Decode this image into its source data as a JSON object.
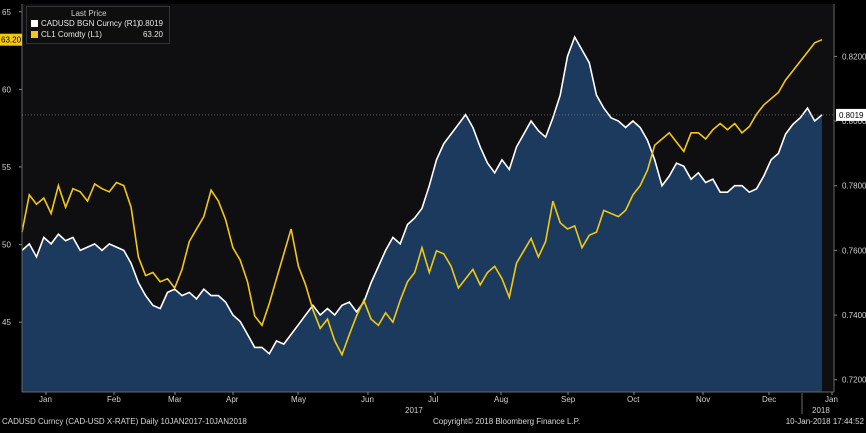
{
  "chart_data": {
    "type": "line",
    "legend": {
      "header": "Last Price",
      "entries": [
        {
          "name": "CADUSD BGN Curncy  (R1)",
          "value": "0.8019",
          "color": "#ffffff"
        },
        {
          "name": "CL1 Comdty  (L1)",
          "value": "63.20",
          "color": "#f2c811"
        }
      ]
    },
    "left_axis": {
      "ticks": [
        "45",
        "50",
        "55",
        "60",
        "65"
      ],
      "ylim": [
        40.5,
        65.5
      ]
    },
    "right_axis": {
      "ticks": [
        "0.7200",
        "0.7400",
        "0.7600",
        "0.7800",
        "0.8000",
        "0.8200"
      ],
      "ylim": [
        0.7162,
        0.8362
      ]
    },
    "x_labels": [
      "Jan",
      "Feb",
      "Mar",
      "Apr",
      "May",
      "Jun",
      "Jul",
      "Aug",
      "Sep",
      "Oct",
      "Nov",
      "Dec",
      "Jan"
    ],
    "year_labels": [
      "2017",
      "2018"
    ],
    "last_value_badges": {
      "left": "63.20",
      "right": "0.8019"
    },
    "series": [
      {
        "name": "CADUSD BGN Curncy  (R1)",
        "axis": "right",
        "color": "#ffffff",
        "fill": "#1c3a5e",
        "values": [
          0.76,
          0.762,
          0.758,
          0.764,
          0.762,
          0.765,
          0.763,
          0.764,
          0.76,
          0.761,
          0.762,
          0.76,
          0.762,
          0.761,
          0.76,
          0.756,
          0.75,
          0.746,
          0.743,
          0.742,
          0.747,
          0.748,
          0.746,
          0.747,
          0.745,
          0.748,
          0.746,
          0.746,
          0.744,
          0.74,
          0.738,
          0.734,
          0.73,
          0.73,
          0.728,
          0.732,
          0.731,
          0.734,
          0.737,
          0.74,
          0.743,
          0.74,
          0.742,
          0.74,
          0.743,
          0.744,
          0.741,
          0.744,
          0.75,
          0.755,
          0.76,
          0.764,
          0.762,
          0.768,
          0.77,
          0.773,
          0.78,
          0.788,
          0.793,
          0.796,
          0.799,
          0.802,
          0.798,
          0.792,
          0.787,
          0.784,
          0.788,
          0.785,
          0.792,
          0.796,
          0.8,
          0.797,
          0.795,
          0.801,
          0.808,
          0.82,
          0.826,
          0.822,
          0.818,
          0.808,
          0.804,
          0.801,
          0.8,
          0.798,
          0.8,
          0.798,
          0.794,
          0.788,
          0.78,
          0.783,
          0.787,
          0.786,
          0.782,
          0.784,
          0.781,
          0.782,
          0.778,
          0.778,
          0.78,
          0.78,
          0.778,
          0.779,
          0.783,
          0.788,
          0.79,
          0.796,
          0.799,
          0.801,
          0.804,
          0.8,
          0.8019
        ]
      },
      {
        "name": "CL1 Comdty  (L1)",
        "axis": "left",
        "color": "#f2c811",
        "values": [
          50.8,
          53.2,
          52.6,
          53.0,
          52.0,
          53.8,
          52.4,
          53.6,
          53.4,
          52.8,
          53.9,
          53.6,
          53.4,
          54.0,
          53.8,
          52.4,
          49.2,
          48.0,
          48.2,
          47.6,
          47.8,
          47.2,
          48.4,
          50.2,
          51.0,
          51.8,
          53.5,
          52.8,
          51.6,
          49.8,
          49.0,
          47.6,
          45.4,
          44.8,
          46.2,
          47.8,
          49.4,
          51.0,
          48.6,
          47.4,
          45.8,
          44.6,
          45.2,
          43.8,
          42.9,
          44.2,
          45.4,
          46.4,
          45.2,
          44.8,
          45.6,
          45.0,
          46.4,
          47.6,
          48.2,
          49.8,
          48.2,
          49.6,
          49.4,
          48.6,
          47.2,
          47.8,
          48.4,
          47.4,
          48.2,
          48.6,
          47.8,
          46.6,
          48.8,
          49.6,
          50.4,
          49.2,
          50.2,
          52.8,
          51.4,
          51.0,
          51.2,
          49.8,
          50.6,
          50.8,
          52.2,
          52.0,
          51.8,
          52.2,
          53.2,
          53.8,
          54.8,
          56.4,
          56.8,
          57.2,
          56.6,
          56.0,
          57.2,
          57.2,
          56.8,
          57.4,
          57.8,
          57.4,
          57.8,
          57.2,
          57.6,
          58.4,
          59.0,
          59.4,
          59.8,
          60.6,
          61.2,
          61.8,
          62.4,
          63.0,
          63.2
        ]
      }
    ],
    "grid": false
  },
  "footer": {
    "left": "CADUSD Curncy (CAD-USD X-RATE)  Daily 10JAN2017-10JAN2018",
    "center": "Copyright© 2018 Bloomberg Finance L.P.",
    "right": "10-Jan-2018 17:44:52"
  }
}
